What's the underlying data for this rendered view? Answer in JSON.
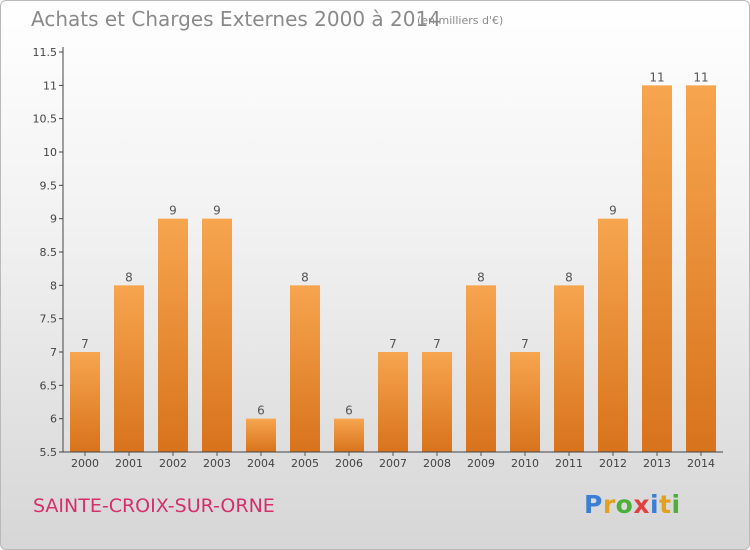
{
  "header": {
    "title": "Achats et Charges Externes 2000 à 2014",
    "unit": "(en milliers d'€)"
  },
  "footer": {
    "commune": "SAINTE-CROIX-SUR-ORNE",
    "logo": [
      "P",
      "r",
      "o",
      "x",
      "i",
      "t",
      "i"
    ]
  },
  "colors": {
    "bar_light": "#f7a54f",
    "bar_dark": "#d8731c",
    "commune": "#d62f6b",
    "logo": [
      "#3a7fd5",
      "#e0a020",
      "#4caf3a",
      "#e04040",
      "#3a7fd5",
      "#e0a020",
      "#4caf3a"
    ]
  },
  "chart_data": {
    "type": "bar",
    "categories": [
      "2000",
      "2001",
      "2002",
      "2003",
      "2004",
      "2005",
      "2006",
      "2007",
      "2008",
      "2009",
      "2010",
      "2011",
      "2012",
      "2013",
      "2014"
    ],
    "values": [
      7,
      8,
      9,
      9,
      6,
      8,
      6,
      7,
      7,
      8,
      7,
      8,
      9,
      11,
      11
    ],
    "data_labels": [
      "7",
      "8",
      "9",
      "9",
      "6",
      "8",
      "6",
      "7",
      "7",
      "8",
      "7",
      "8",
      "9",
      "11",
      "11"
    ],
    "ylim": [
      5.5,
      11.5
    ],
    "yticks": [
      "5.5",
      "6",
      "6.5",
      "7",
      "7.5",
      "8",
      "8.5",
      "9",
      "9.5",
      "10",
      "10.5",
      "11",
      "11.5"
    ],
    "grid": false,
    "legend": "none"
  }
}
